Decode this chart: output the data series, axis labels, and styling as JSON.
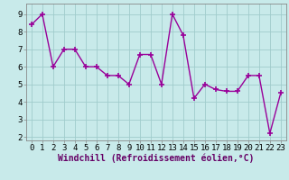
{
  "x": [
    0,
    1,
    2,
    3,
    4,
    5,
    6,
    7,
    8,
    9,
    10,
    11,
    12,
    13,
    14,
    15,
    16,
    17,
    18,
    19,
    20,
    21,
    22,
    23
  ],
  "y": [
    8.4,
    9.0,
    6.0,
    7.0,
    7.0,
    6.0,
    6.0,
    5.5,
    5.5,
    5.0,
    6.7,
    6.7,
    5.0,
    9.0,
    7.8,
    4.2,
    5.0,
    4.7,
    4.6,
    4.6,
    5.5,
    5.5,
    2.2,
    4.5
  ],
  "line_color": "#990099",
  "marker": "+",
  "marker_size": 4,
  "marker_lw": 1.2,
  "line_width": 1.0,
  "bg_color": "#c8eaea",
  "grid_color": "#a0cccc",
  "xlabel": "Windchill (Refroidissement éolien,°C)",
  "xlabel_fontsize": 7.0,
  "tick_fontsize": 6.5,
  "ylim": [
    1.8,
    9.6
  ],
  "yticks": [
    2,
    3,
    4,
    5,
    6,
    7,
    8,
    9
  ],
  "xlim": [
    -0.5,
    23.5
  ],
  "spine_color": "#888888"
}
